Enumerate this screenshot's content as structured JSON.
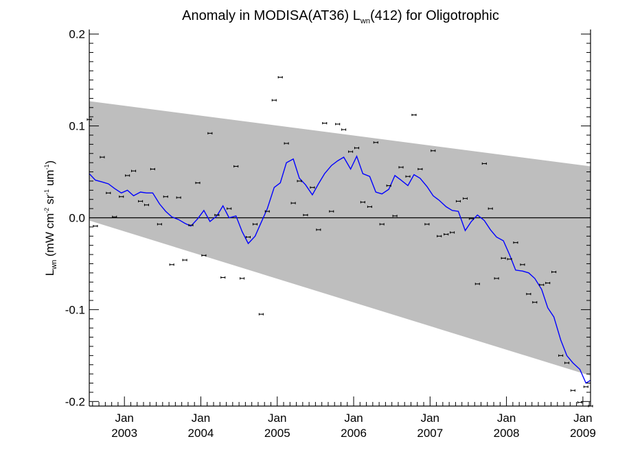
{
  "chart_data": {
    "type": "line",
    "title_parts": [
      "Anomaly in MODISA(AT36) L",
      "wn",
      "(412) for Oligotrophic"
    ],
    "ylabel_parts": [
      "L",
      "wn",
      " (mW cm",
      "-2",
      " sr",
      "-1",
      " um",
      "-1",
      ")"
    ],
    "xlim": [
      2002.54,
      2009.1
    ],
    "ylim": [
      -0.205,
      0.205
    ],
    "x_ticks": [
      {
        "x": 2003.0,
        "month": "Jan",
        "year": "2003"
      },
      {
        "x": 2004.0,
        "month": "Jan",
        "year": "2004"
      },
      {
        "x": 2005.0,
        "month": "Jan",
        "year": "2005"
      },
      {
        "x": 2006.0,
        "month": "Jan",
        "year": "2006"
      },
      {
        "x": 2007.0,
        "month": "Jan",
        "year": "2007"
      },
      {
        "x": 2008.0,
        "month": "Jan",
        "year": "2008"
      },
      {
        "x": 2009.0,
        "month": "Jan",
        "year": "2009"
      }
    ],
    "y_ticks": [
      {
        "value": 0.2,
        "label": "0.2"
      },
      {
        "value": 0.1,
        "label": "0.1"
      },
      {
        "value": 0.0,
        "label": "0.0"
      },
      {
        "value": -0.1,
        "label": "-0.1"
      },
      {
        "value": -0.2,
        "label": "-0.2"
      }
    ],
    "zero_line": 0.0,
    "band": {
      "x_start": 2002.54,
      "upper_start": 0.127,
      "lower_start": -0.003,
      "x_end": 2009.1,
      "upper_end": 0.056,
      "lower_end": -0.172,
      "color": "#bebebe"
    },
    "line_color": "#0000ff",
    "point_color": "#000000",
    "smoothed_series": {
      "x": [
        2002.54,
        2002.62,
        2002.71,
        2002.79,
        2002.87,
        2002.96,
        2003.04,
        2003.12,
        2003.21,
        2003.29,
        2003.37,
        2003.46,
        2003.54,
        2003.62,
        2003.71,
        2003.79,
        2003.87,
        2003.96,
        2004.04,
        2004.12,
        2004.21,
        2004.29,
        2004.37,
        2004.46,
        2004.54,
        2004.62,
        2004.71,
        2004.79,
        2004.87,
        2004.96,
        2005.04,
        2005.12,
        2005.21,
        2005.29,
        2005.37,
        2005.46,
        2005.54,
        2005.62,
        2005.71,
        2005.79,
        2005.87,
        2005.96,
        2006.04,
        2006.12,
        2006.21,
        2006.29,
        2006.37,
        2006.46,
        2006.54,
        2006.62,
        2006.71,
        2006.79,
        2006.87,
        2006.96,
        2007.04,
        2007.12,
        2007.21,
        2007.29,
        2007.37,
        2007.46,
        2007.54,
        2007.62,
        2007.71,
        2007.79,
        2007.87,
        2007.96,
        2008.04,
        2008.12,
        2008.21,
        2008.29,
        2008.37,
        2008.46,
        2008.54,
        2008.62,
        2008.71,
        2008.79,
        2008.87,
        2008.96,
        2009.04,
        2009.1
      ],
      "y": [
        0.048,
        0.041,
        0.039,
        0.037,
        0.032,
        0.027,
        0.03,
        0.024,
        0.028,
        0.027,
        0.027,
        0.015,
        0.007,
        0.001,
        -0.002,
        -0.006,
        -0.009,
        -0.001,
        0.008,
        -0.004,
        0.002,
        0.013,
        0.0,
        0.002,
        -0.015,
        -0.028,
        -0.02,
        -0.005,
        0.01,
        0.033,
        0.038,
        0.06,
        0.064,
        0.043,
        0.036,
        0.025,
        0.037,
        0.048,
        0.057,
        0.062,
        0.066,
        0.053,
        0.067,
        0.048,
        0.045,
        0.028,
        0.026,
        0.031,
        0.046,
        0.041,
        0.035,
        0.047,
        0.043,
        0.034,
        0.024,
        0.019,
        0.012,
        0.008,
        0.007,
        -0.014,
        -0.004,
        0.003,
        -0.003,
        -0.013,
        -0.021,
        -0.025,
        -0.04,
        -0.057,
        -0.058,
        -0.06,
        -0.066,
        -0.078,
        -0.098,
        -0.108,
        -0.133,
        -0.15,
        -0.158,
        -0.165,
        -0.18,
        -0.177
      ]
    },
    "monthly_points": {
      "x": [
        2002.54,
        2002.62,
        2002.71,
        2002.79,
        2002.87,
        2002.96,
        2003.04,
        2003.12,
        2003.21,
        2003.29,
        2003.37,
        2003.46,
        2003.54,
        2003.62,
        2003.71,
        2003.79,
        2003.87,
        2003.96,
        2004.04,
        2004.12,
        2004.21,
        2004.29,
        2004.37,
        2004.46,
        2004.54,
        2004.62,
        2004.71,
        2004.79,
        2004.87,
        2004.96,
        2005.04,
        2005.12,
        2005.21,
        2005.29,
        2005.37,
        2005.46,
        2005.54,
        2005.62,
        2005.71,
        2005.79,
        2005.87,
        2005.96,
        2006.04,
        2006.12,
        2006.21,
        2006.29,
        2006.37,
        2006.46,
        2006.54,
        2006.62,
        2006.71,
        2006.79,
        2006.87,
        2006.96,
        2007.04,
        2007.12,
        2007.21,
        2007.29,
        2007.37,
        2007.46,
        2007.54,
        2007.62,
        2007.71,
        2007.79,
        2007.87,
        2007.96,
        2008.04,
        2008.12,
        2008.21,
        2008.29,
        2008.37,
        2008.46,
        2008.54,
        2008.62,
        2008.71,
        2008.79,
        2008.87,
        2008.96,
        2009.04,
        2009.1
      ],
      "y": [
        0.107,
        -0.009,
        0.066,
        0.027,
        0.001,
        0.023,
        0.046,
        0.051,
        0.018,
        0.014,
        0.053,
        -0.007,
        0.023,
        -0.051,
        0.022,
        -0.046,
        -0.008,
        0.038,
        -0.041,
        0.092,
        0.003,
        -0.065,
        0.01,
        0.056,
        -0.066,
        -0.021,
        -0.007,
        -0.105,
        0.007,
        0.128,
        0.153,
        0.081,
        0.016,
        0.04,
        0.003,
        0.033,
        -0.013,
        0.103,
        0.007,
        0.102,
        0.096,
        0.072,
        0.076,
        0.017,
        0.012,
        0.082,
        -0.007,
        0.035,
        0.002,
        0.055,
        0.045,
        0.112,
        0.053,
        -0.007,
        0.073,
        -0.02,
        -0.018,
        -0.016,
        0.018,
        0.021,
        -0.001,
        -0.072,
        0.059,
        0.01,
        -0.066,
        -0.044,
        -0.045,
        -0.027,
        -0.051,
        -0.083,
        -0.092,
        -0.073,
        -0.071,
        -0.059,
        -0.15,
        -0.158,
        -0.188,
        -0.201,
        -0.184,
        -0.205
      ]
    }
  }
}
